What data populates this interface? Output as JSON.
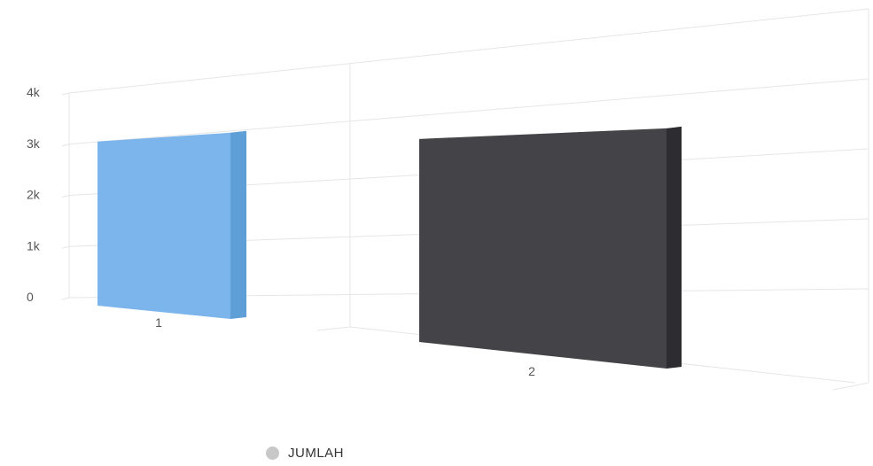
{
  "chart_data": {
    "type": "bar",
    "categories": [
      "1",
      "2"
    ],
    "series": [
      {
        "name": "JUMLAH",
        "values": [
          3250,
          3420
        ]
      }
    ],
    "yticks": [
      "0",
      "1k",
      "2k",
      "3k",
      "4k"
    ],
    "ylim": [
      0,
      4000
    ],
    "grid": true,
    "legend": "bottom",
    "colors": {
      "bar1_front": "#7cb5ec",
      "bar1_side": "#5f9fd8",
      "bar2_front": "#434348",
      "bar2_side": "#2c2c31",
      "grid": "#e6e6e6",
      "legend_dot": "#c8c8c8"
    }
  }
}
